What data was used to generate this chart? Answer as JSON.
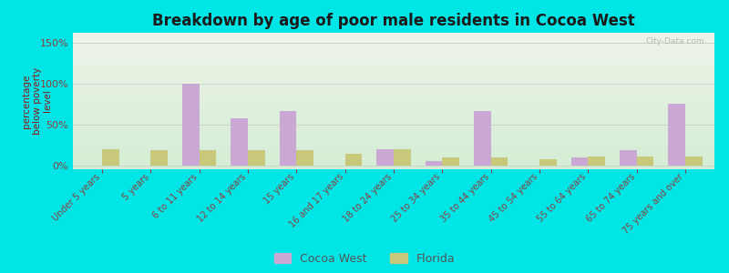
{
  "title": "Breakdown by age of poor male residents in Cocoa West",
  "ylabel": "percentage\nbelow poverty\nlevel",
  "categories": [
    "Under 5 years",
    "5 years",
    "6 to 11 years",
    "12 to 14 years",
    "15 years",
    "16 and 17 years",
    "18 to 24 years",
    "25 to 34 years",
    "35 to 44 years",
    "45 to 54 years",
    "55 to 64 years",
    "65 to 74 years",
    "75 years and over"
  ],
  "cocoa_west": [
    0,
    0,
    100,
    57,
    66,
    0,
    20,
    5,
    66,
    0,
    10,
    18,
    75
  ],
  "florida": [
    20,
    18,
    18,
    18,
    18,
    14,
    20,
    9,
    9,
    7,
    11,
    11,
    11
  ],
  "bar_width": 0.35,
  "cocoa_color": "#c9a8d4",
  "florida_color": "#c8c87a",
  "bg_top": "#eef4e8",
  "bg_bottom": "#d4ecd4",
  "outer_bg": "#00e5e5",
  "title_color": "#1a1a1a",
  "ylabel_color": "#8b1a1a",
  "tick_color": "#8b4040",
  "yticks": [
    0,
    50,
    100,
    150
  ],
  "ytick_labels": [
    "0%",
    "50%",
    "100%",
    "150%"
  ],
  "ylim": [
    -5,
    162
  ],
  "title_fontsize": 12,
  "label_fontsize": 7,
  "legend_fontsize": 9
}
